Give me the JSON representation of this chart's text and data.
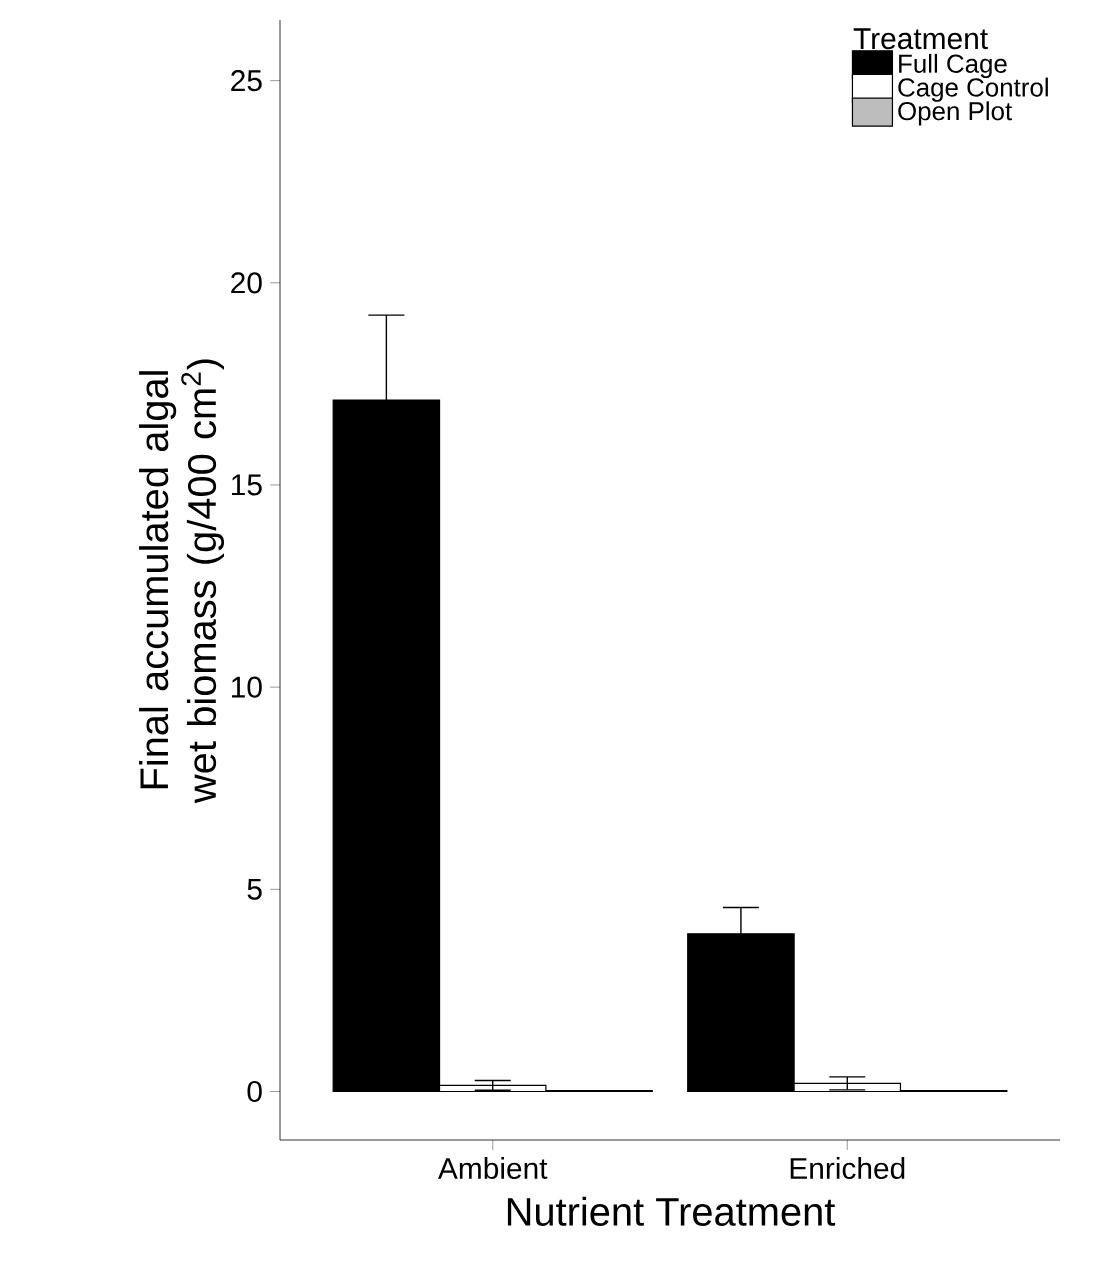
{
  "chart_data": {
    "type": "bar",
    "xlabel": "Nutrient Treatment",
    "ylabel": "Final accumulated algal wet biomass (g/400 cm$^{2}$)",
    "legend_title": "Treatment",
    "legend": "top right",
    "categories": [
      "Ambient",
      "Enriched"
    ],
    "series": [
      {
        "name": "Full Cage",
        "color": "#000000",
        "values": [
          17.1,
          3.9
        ],
        "errors": [
          2.1,
          0.65
        ]
      },
      {
        "name": "Cage Control",
        "color": "#ffffff",
        "values": [
          0.15,
          0.2
        ],
        "errors": [
          0.12,
          0.16
        ]
      },
      {
        "name": "Open Plot",
        "color": "#bdbdbd",
        "values": [
          0.02,
          0.02
        ],
        "errors": [
          null,
          null
        ]
      }
    ],
    "ylim": [
      -1.2,
      26.5
    ],
    "yticks": [
      0,
      5,
      10,
      15,
      20,
      25
    ],
    "grid": false
  }
}
